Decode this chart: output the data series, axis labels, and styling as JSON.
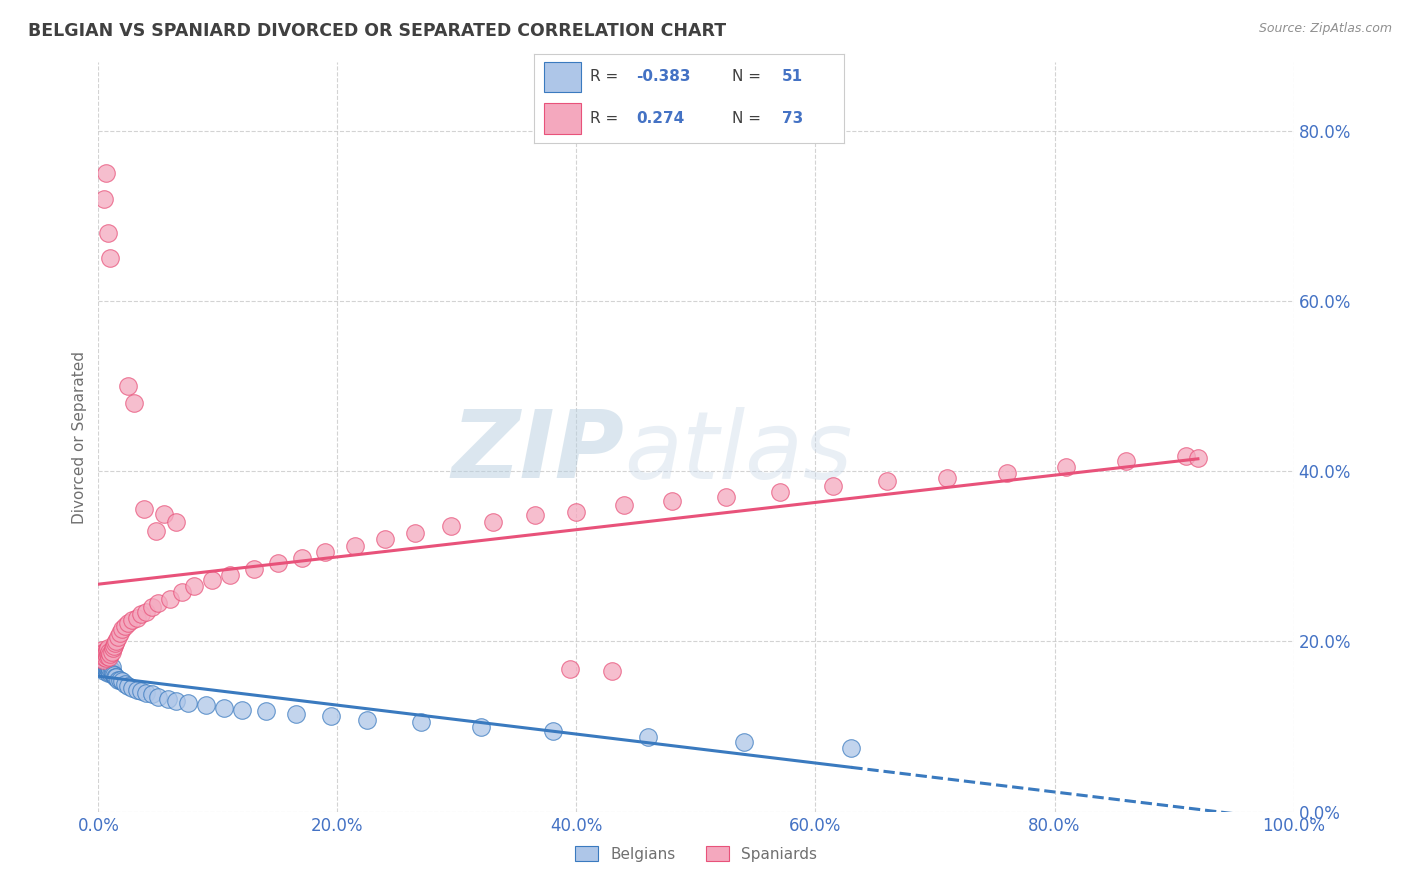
{
  "title": "BELGIAN VS SPANIARD DIVORCED OR SEPARATED CORRELATION CHART",
  "source": "Source: ZipAtlas.com",
  "ylabel": "Divorced or Separated",
  "watermark_zip": "ZIP",
  "watermark_atlas": "atlas",
  "legend_labels": [
    "Belgians",
    "Spaniards"
  ],
  "belgian_color": "#aec6e8",
  "spaniard_color": "#f4a8be",
  "belgian_line_color": "#3a7abf",
  "spaniard_line_color": "#e8527a",
  "r_belgian": -0.383,
  "n_belgian": 51,
  "r_spaniard": 0.274,
  "n_spaniard": 73,
  "background_color": "#ffffff",
  "grid_color": "#c8c8c8",
  "title_color": "#404040",
  "axis_label_color": "#707070",
  "legend_r_color": "#4472c4",
  "tick_label_color": "#4472c4",
  "xlim": [
    0.0,
    1.0
  ],
  "ylim": [
    0.0,
    0.88
  ],
  "xticks": [
    0.0,
    0.2,
    0.4,
    0.6,
    0.8,
    1.0
  ],
  "yticks": [
    0.0,
    0.2,
    0.4,
    0.6,
    0.8
  ],
  "belgian_scatter_x": [
    0.002,
    0.003,
    0.004,
    0.004,
    0.005,
    0.005,
    0.005,
    0.006,
    0.006,
    0.007,
    0.007,
    0.007,
    0.008,
    0.008,
    0.009,
    0.009,
    0.01,
    0.01,
    0.011,
    0.011,
    0.012,
    0.013,
    0.014,
    0.015,
    0.016,
    0.018,
    0.02,
    0.022,
    0.025,
    0.028,
    0.032,
    0.036,
    0.04,
    0.045,
    0.05,
    0.058,
    0.065,
    0.075,
    0.09,
    0.105,
    0.12,
    0.14,
    0.165,
    0.195,
    0.225,
    0.27,
    0.32,
    0.38,
    0.46,
    0.54,
    0.63
  ],
  "belgian_scatter_y": [
    0.175,
    0.17,
    0.168,
    0.172,
    0.165,
    0.17,
    0.175,
    0.168,
    0.173,
    0.165,
    0.17,
    0.175,
    0.163,
    0.168,
    0.165,
    0.17,
    0.163,
    0.168,
    0.165,
    0.17,
    0.162,
    0.16,
    0.158,
    0.158,
    0.155,
    0.155,
    0.153,
    0.15,
    0.148,
    0.145,
    0.143,
    0.142,
    0.14,
    0.138,
    0.135,
    0.132,
    0.13,
    0.128,
    0.125,
    0.122,
    0.12,
    0.118,
    0.115,
    0.112,
    0.108,
    0.105,
    0.1,
    0.095,
    0.088,
    0.082,
    0.075
  ],
  "spaniard_scatter_x": [
    0.001,
    0.002,
    0.003,
    0.003,
    0.004,
    0.004,
    0.005,
    0.005,
    0.006,
    0.006,
    0.007,
    0.007,
    0.008,
    0.008,
    0.009,
    0.009,
    0.01,
    0.011,
    0.012,
    0.013,
    0.014,
    0.015,
    0.016,
    0.018,
    0.02,
    0.022,
    0.025,
    0.028,
    0.032,
    0.036,
    0.04,
    0.045,
    0.05,
    0.06,
    0.07,
    0.08,
    0.095,
    0.11,
    0.13,
    0.15,
    0.17,
    0.19,
    0.215,
    0.24,
    0.265,
    0.295,
    0.33,
    0.365,
    0.4,
    0.44,
    0.48,
    0.525,
    0.57,
    0.615,
    0.66,
    0.71,
    0.76,
    0.81,
    0.86,
    0.91,
    0.038,
    0.048,
    0.055,
    0.065,
    0.025,
    0.03,
    0.008,
    0.01,
    0.006,
    0.005,
    0.395,
    0.43,
    0.92
  ],
  "spaniard_scatter_y": [
    0.185,
    0.18,
    0.183,
    0.19,
    0.178,
    0.185,
    0.182,
    0.188,
    0.18,
    0.186,
    0.183,
    0.19,
    0.185,
    0.192,
    0.182,
    0.188,
    0.185,
    0.188,
    0.192,
    0.195,
    0.198,
    0.2,
    0.205,
    0.21,
    0.215,
    0.218,
    0.222,
    0.225,
    0.228,
    0.232,
    0.235,
    0.24,
    0.245,
    0.25,
    0.258,
    0.265,
    0.272,
    0.278,
    0.285,
    0.292,
    0.298,
    0.305,
    0.312,
    0.32,
    0.327,
    0.335,
    0.34,
    0.348,
    0.352,
    0.36,
    0.365,
    0.37,
    0.375,
    0.382,
    0.388,
    0.392,
    0.398,
    0.405,
    0.412,
    0.418,
    0.355,
    0.33,
    0.35,
    0.34,
    0.5,
    0.48,
    0.68,
    0.65,
    0.75,
    0.72,
    0.168,
    0.165,
    0.415
  ]
}
